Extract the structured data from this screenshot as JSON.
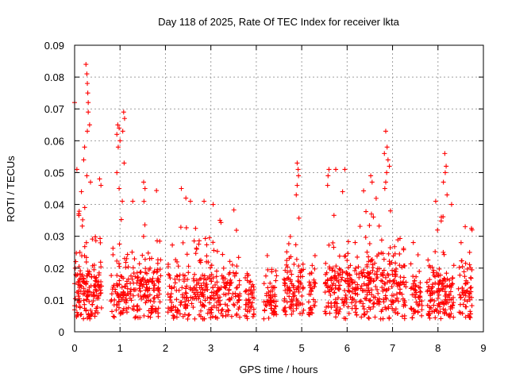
{
  "chart_data": {
    "type": "scatter",
    "title": "Day 118 of 2025, Rate Of TEC Index for receiver lkta",
    "xlabel": "GPS time / hours",
    "ylabel": "ROTI / TECUs",
    "xlim": [
      0,
      9
    ],
    "ylim": [
      0,
      0.09
    ],
    "xticks": [
      "0",
      "1",
      "2",
      "3",
      "4",
      "5",
      "6",
      "7",
      "8",
      "9"
    ],
    "yticks": [
      "0",
      "0.01",
      "0.02",
      "0.03",
      "0.04",
      "0.05",
      "0.06",
      "0.07",
      "0.08",
      "0.09"
    ],
    "grid": true,
    "marker": "+",
    "series_color": "#ff0000",
    "segments": [
      {
        "start": 0.0,
        "end": 0.6,
        "base": 0.013,
        "spread": 0.011,
        "n": 160
      },
      {
        "start": 0.8,
        "end": 1.9,
        "base": 0.013,
        "spread": 0.011,
        "n": 230
      },
      {
        "start": 2.05,
        "end": 3.65,
        "base": 0.012,
        "spread": 0.01,
        "n": 300
      },
      {
        "start": 3.75,
        "end": 3.95,
        "base": 0.01,
        "spread": 0.008,
        "n": 45
      },
      {
        "start": 4.15,
        "end": 4.45,
        "base": 0.01,
        "spread": 0.008,
        "n": 60
      },
      {
        "start": 4.6,
        "end": 5.05,
        "base": 0.012,
        "spread": 0.01,
        "n": 100
      },
      {
        "start": 5.15,
        "end": 5.3,
        "base": 0.01,
        "spread": 0.008,
        "n": 35
      },
      {
        "start": 5.5,
        "end": 7.3,
        "base": 0.013,
        "spread": 0.011,
        "n": 380
      },
      {
        "start": 7.4,
        "end": 7.65,
        "base": 0.01,
        "spread": 0.008,
        "n": 50
      },
      {
        "start": 7.75,
        "end": 8.35,
        "base": 0.012,
        "spread": 0.01,
        "n": 140
      },
      {
        "start": 8.45,
        "end": 8.75,
        "base": 0.012,
        "spread": 0.009,
        "n": 60
      }
    ],
    "spikes": [
      {
        "x": 0.0,
        "y": 0.072
      },
      {
        "x": 0.05,
        "y": 0.051
      },
      {
        "x": 0.25,
        "y": 0.084
      },
      {
        "x": 0.27,
        "y": 0.081
      },
      {
        "x": 0.28,
        "y": 0.078
      },
      {
        "x": 0.29,
        "y": 0.075
      },
      {
        "x": 0.3,
        "y": 0.072
      },
      {
        "x": 0.3,
        "y": 0.069
      },
      {
        "x": 0.33,
        "y": 0.065
      },
      {
        "x": 0.28,
        "y": 0.063
      },
      {
        "x": 0.22,
        "y": 0.058
      },
      {
        "x": 0.2,
        "y": 0.054
      },
      {
        "x": 0.27,
        "y": 0.049
      },
      {
        "x": 0.35,
        "y": 0.047
      },
      {
        "x": 0.15,
        "y": 0.044
      },
      {
        "x": 0.55,
        "y": 0.048
      },
      {
        "x": 0.58,
        "y": 0.046
      },
      {
        "x": 0.95,
        "y": 0.065
      },
      {
        "x": 0.98,
        "y": 0.064
      },
      {
        "x": 0.93,
        "y": 0.062
      },
      {
        "x": 1.0,
        "y": 0.06
      },
      {
        "x": 0.96,
        "y": 0.058
      },
      {
        "x": 1.08,
        "y": 0.069
      },
      {
        "x": 1.1,
        "y": 0.067
      },
      {
        "x": 1.06,
        "y": 0.063
      },
      {
        "x": 1.09,
        "y": 0.053
      },
      {
        "x": 0.93,
        "y": 0.05
      },
      {
        "x": 0.98,
        "y": 0.045
      },
      {
        "x": 1.05,
        "y": 0.041
      },
      {
        "x": 1.52,
        "y": 0.047
      },
      {
        "x": 1.55,
        "y": 0.045
      },
      {
        "x": 1.28,
        "y": 0.041
      },
      {
        "x": 2.35,
        "y": 0.045
      },
      {
        "x": 2.45,
        "y": 0.042
      },
      {
        "x": 2.55,
        "y": 0.041
      },
      {
        "x": 2.85,
        "y": 0.041
      },
      {
        "x": 3.05,
        "y": 0.04
      },
      {
        "x": 3.2,
        "y": 0.035
      },
      {
        "x": 4.9,
        "y": 0.053
      },
      {
        "x": 4.92,
        "y": 0.051
      },
      {
        "x": 4.93,
        "y": 0.049
      },
      {
        "x": 4.9,
        "y": 0.046
      },
      {
        "x": 4.88,
        "y": 0.043
      },
      {
        "x": 5.6,
        "y": 0.051
      },
      {
        "x": 5.58,
        "y": 0.049
      },
      {
        "x": 5.57,
        "y": 0.046
      },
      {
        "x": 5.75,
        "y": 0.051
      },
      {
        "x": 5.95,
        "y": 0.051
      },
      {
        "x": 5.9,
        "y": 0.044
      },
      {
        "x": 6.52,
        "y": 0.049
      },
      {
        "x": 6.55,
        "y": 0.047
      },
      {
        "x": 6.85,
        "y": 0.063
      },
      {
        "x": 6.88,
        "y": 0.058
      },
      {
        "x": 6.82,
        "y": 0.056
      },
      {
        "x": 6.9,
        "y": 0.054
      },
      {
        "x": 6.93,
        "y": 0.052
      },
      {
        "x": 6.87,
        "y": 0.05
      },
      {
        "x": 6.85,
        "y": 0.047
      },
      {
        "x": 6.83,
        "y": 0.045
      },
      {
        "x": 8.15,
        "y": 0.056
      },
      {
        "x": 8.18,
        "y": 0.052
      },
      {
        "x": 8.16,
        "y": 0.05
      },
      {
        "x": 8.12,
        "y": 0.047
      },
      {
        "x": 8.2,
        "y": 0.043
      },
      {
        "x": 8.3,
        "y": 0.04
      },
      {
        "x": 7.95,
        "y": 0.041
      },
      {
        "x": 8.6,
        "y": 0.033
      },
      {
        "x": 8.75,
        "y": 0.032
      }
    ]
  }
}
